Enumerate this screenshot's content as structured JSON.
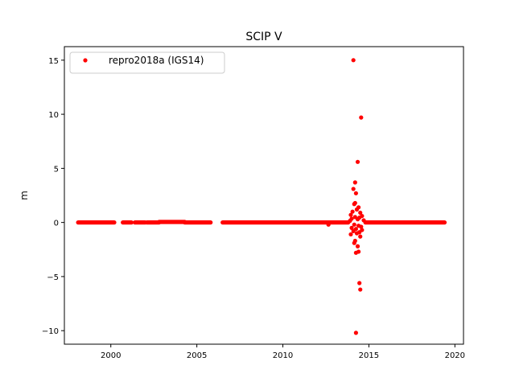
{
  "chart_data": {
    "type": "scatter",
    "title": "SCIP V",
    "xlabel": "",
    "ylabel": "m",
    "xlim": [
      1997.3,
      2020.5
    ],
    "ylim": [
      -11.25,
      16.25
    ],
    "xticks": [
      2000,
      2005,
      2010,
      2015,
      2020
    ],
    "yticks": [
      -10,
      -5,
      0,
      5,
      10,
      15
    ],
    "grid": false,
    "legend_position": "top-left",
    "series": [
      {
        "name": "repro2018a (IGS14)",
        "color": "#ff0000",
        "dense_segments": [
          {
            "from": 1998.1,
            "to": 2000.2,
            "value": 0.0
          },
          {
            "from": 2000.7,
            "to": 2001.2,
            "value": 0.0
          },
          {
            "from": 2001.4,
            "to": 2002.0,
            "value": 0.0
          },
          {
            "from": 2002.1,
            "to": 2002.8,
            "value": 0.0
          },
          {
            "from": 2002.8,
            "to": 2004.3,
            "value": 0.05
          },
          {
            "from": 2004.3,
            "to": 2005.8,
            "value": 0.0
          },
          {
            "from": 2006.5,
            "to": 2013.8,
            "value": 0.0
          },
          {
            "from": 2014.8,
            "to": 2019.4,
            "value": 0.0
          }
        ],
        "points": [
          {
            "x": 2014.1,
            "y": 15.0
          },
          {
            "x": 2014.55,
            "y": 9.7
          },
          {
            "x": 2014.35,
            "y": 5.6
          },
          {
            "x": 2014.2,
            "y": 3.7
          },
          {
            "x": 2014.1,
            "y": 3.1
          },
          {
            "x": 2014.25,
            "y": 2.7
          },
          {
            "x": 2014.2,
            "y": 1.8
          },
          {
            "x": 2014.15,
            "y": 1.7
          },
          {
            "x": 2014.4,
            "y": 1.4
          },
          {
            "x": 2014.3,
            "y": 1.2
          },
          {
            "x": 2014.05,
            "y": 1.0
          },
          {
            "x": 2014.5,
            "y": 0.9
          },
          {
            "x": 2013.95,
            "y": 0.7
          },
          {
            "x": 2014.6,
            "y": 0.6
          },
          {
            "x": 2014.2,
            "y": 0.5
          },
          {
            "x": 2014.45,
            "y": 0.45
          },
          {
            "x": 2014.0,
            "y": 0.35
          },
          {
            "x": 2014.35,
            "y": 0.3
          },
          {
            "x": 2014.7,
            "y": 0.2
          },
          {
            "x": 2013.9,
            "y": 0.15
          },
          {
            "x": 2014.15,
            "y": -0.2
          },
          {
            "x": 2014.4,
            "y": -0.3
          },
          {
            "x": 2014.55,
            "y": -0.4
          },
          {
            "x": 2014.0,
            "y": -0.5
          },
          {
            "x": 2014.25,
            "y": -0.6
          },
          {
            "x": 2014.6,
            "y": -0.7
          },
          {
            "x": 2014.1,
            "y": -0.8
          },
          {
            "x": 2014.45,
            "y": -0.9
          },
          {
            "x": 2014.3,
            "y": -1.0
          },
          {
            "x": 2013.95,
            "y": -1.1
          },
          {
            "x": 2014.5,
            "y": -1.3
          },
          {
            "x": 2014.2,
            "y": -1.7
          },
          {
            "x": 2014.15,
            "y": -1.9
          },
          {
            "x": 2014.35,
            "y": -2.2
          },
          {
            "x": 2014.4,
            "y": -2.7
          },
          {
            "x": 2014.25,
            "y": -2.8
          },
          {
            "x": 2012.65,
            "y": -0.2
          },
          {
            "x": 2014.45,
            "y": -5.6
          },
          {
            "x": 2014.5,
            "y": -6.2
          },
          {
            "x": 2014.25,
            "y": -10.2
          }
        ]
      }
    ]
  }
}
